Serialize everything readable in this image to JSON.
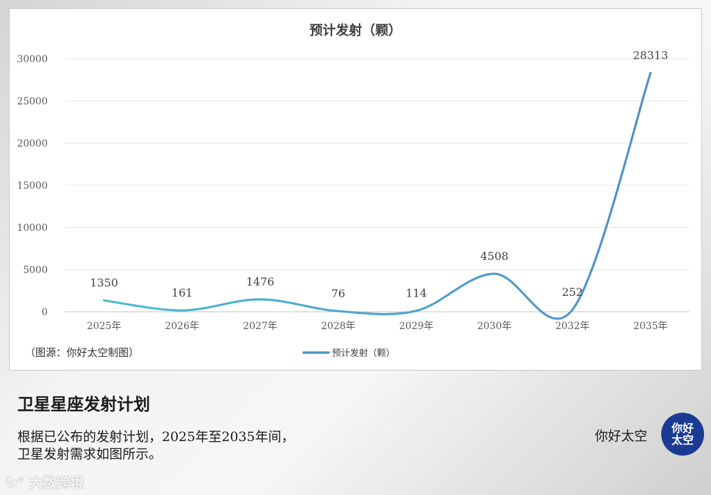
{
  "chart_data": {
    "type": "line",
    "title": "预计发射（颗）",
    "categories": [
      "2025年",
      "2026年",
      "2027年",
      "2028年",
      "2029年",
      "2030年",
      "2032年",
      "2035年"
    ],
    "series": [
      {
        "name": "预计发射（颗）",
        "values": [
          1350,
          161,
          1476,
          76,
          114,
          4508,
          252,
          28313
        ],
        "color": "#4a94c6"
      }
    ],
    "y_ticks": [
      0,
      5000,
      10000,
      15000,
      20000,
      25000,
      30000
    ],
    "ylim": [
      0,
      30000
    ],
    "xlabel": "",
    "ylabel": "",
    "grid": true,
    "legend": "bottom-center",
    "line_gradient": [
      "#4dbcd0",
      "#4f8fc8"
    ]
  },
  "source_note": "（图源：你好太空制图）",
  "headline": "卫星星座发射计划",
  "description": {
    "line1": "根据已公布的发射计划，2025年至2035年间，",
    "line2": "卫星发射需求如图所示。"
  },
  "brand": {
    "name": "你好太空",
    "logo_line1": "你好",
    "logo_line2": "太空",
    "logo_color": "#1b3a93"
  },
  "watermark": "大数跨境"
}
